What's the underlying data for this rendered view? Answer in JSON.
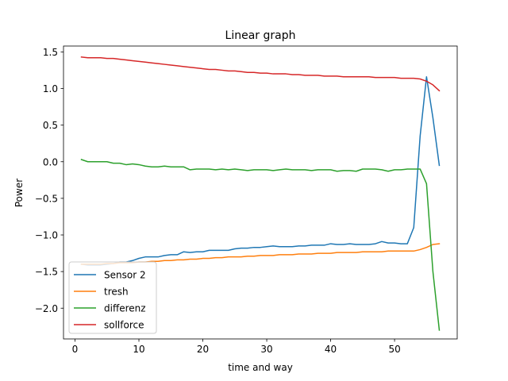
{
  "chart_data": {
    "type": "line",
    "title": "Linear graph",
    "xlabel": "time and way",
    "ylabel": "Power",
    "xlim": [
      -1.8,
      59.8
    ],
    "ylim": [
      -2.42,
      1.58
    ],
    "xticks": [
      0,
      10,
      20,
      30,
      40,
      50
    ],
    "yticks": [
      -2.0,
      -1.5,
      -1.0,
      -0.5,
      0.0,
      0.5,
      1.0,
      1.5
    ],
    "xtick_labels": [
      "0",
      "10",
      "20",
      "30",
      "40",
      "50"
    ],
    "ytick_labels": [
      "−2.0",
      "−1.5",
      "−1.0",
      "−0.5",
      "0.0",
      "0.5",
      "1.0",
      "1.5"
    ],
    "grid": false,
    "legend_position": "lower-left",
    "x": [
      1,
      2,
      3,
      4,
      5,
      6,
      7,
      8,
      9,
      10,
      11,
      12,
      13,
      14,
      15,
      16,
      17,
      18,
      19,
      20,
      21,
      22,
      23,
      24,
      25,
      26,
      27,
      28,
      29,
      30,
      31,
      32,
      33,
      34,
      35,
      36,
      37,
      38,
      39,
      40,
      41,
      42,
      43,
      44,
      45,
      46,
      47,
      48,
      49,
      50,
      51,
      52,
      53,
      54,
      55,
      56,
      57
    ],
    "series": [
      {
        "name": "Sensor 2",
        "color": "#1f77b4",
        "values": [
          -1.4,
          -1.41,
          -1.41,
          -1.41,
          -1.4,
          -1.39,
          -1.37,
          -1.37,
          -1.35,
          -1.32,
          -1.3,
          -1.3,
          -1.3,
          -1.28,
          -1.27,
          -1.27,
          -1.23,
          -1.24,
          -1.23,
          -1.23,
          -1.21,
          -1.21,
          -1.21,
          -1.21,
          -1.19,
          -1.18,
          -1.18,
          -1.17,
          -1.17,
          -1.16,
          -1.15,
          -1.16,
          -1.16,
          -1.16,
          -1.15,
          -1.15,
          -1.14,
          -1.14,
          -1.14,
          -1.12,
          -1.13,
          -1.13,
          -1.12,
          -1.13,
          -1.13,
          -1.13,
          -1.12,
          -1.09,
          -1.11,
          -1.11,
          -1.12,
          -1.12,
          -0.9,
          0.35,
          1.16,
          0.6,
          -0.05
        ]
      },
      {
        "name": "tresh",
        "color": "#ff7f0e",
        "values": [
          -1.4,
          -1.4,
          -1.4,
          -1.4,
          -1.39,
          -1.39,
          -1.38,
          -1.38,
          -1.38,
          -1.37,
          -1.37,
          -1.36,
          -1.36,
          -1.35,
          -1.35,
          -1.34,
          -1.34,
          -1.33,
          -1.33,
          -1.32,
          -1.32,
          -1.31,
          -1.31,
          -1.3,
          -1.3,
          -1.3,
          -1.29,
          -1.29,
          -1.28,
          -1.28,
          -1.28,
          -1.27,
          -1.27,
          -1.27,
          -1.26,
          -1.26,
          -1.26,
          -1.25,
          -1.25,
          -1.25,
          -1.24,
          -1.24,
          -1.24,
          -1.24,
          -1.23,
          -1.23,
          -1.23,
          -1.23,
          -1.22,
          -1.22,
          -1.22,
          -1.22,
          -1.22,
          -1.2,
          -1.17,
          -1.13,
          -1.12
        ]
      },
      {
        "name": "differenz",
        "color": "#2ca02c",
        "values": [
          0.03,
          0.0,
          0.0,
          0.0,
          0.0,
          -0.02,
          -0.02,
          -0.04,
          -0.03,
          -0.04,
          -0.06,
          -0.07,
          -0.07,
          -0.06,
          -0.07,
          -0.07,
          -0.07,
          -0.11,
          -0.1,
          -0.1,
          -0.1,
          -0.11,
          -0.1,
          -0.11,
          -0.1,
          -0.11,
          -0.12,
          -0.11,
          -0.11,
          -0.11,
          -0.12,
          -0.11,
          -0.1,
          -0.11,
          -0.11,
          -0.11,
          -0.12,
          -0.11,
          -0.11,
          -0.11,
          -0.13,
          -0.12,
          -0.12,
          -0.13,
          -0.1,
          -0.1,
          -0.1,
          -0.11,
          -0.13,
          -0.11,
          -0.11,
          -0.1,
          -0.1,
          -0.1,
          -0.3,
          -1.5,
          -2.3
        ]
      },
      {
        "name": "sollforce",
        "color": "#d62728",
        "values": [
          1.43,
          1.42,
          1.42,
          1.42,
          1.41,
          1.41,
          1.4,
          1.39,
          1.38,
          1.37,
          1.36,
          1.35,
          1.34,
          1.33,
          1.32,
          1.31,
          1.3,
          1.29,
          1.28,
          1.27,
          1.26,
          1.26,
          1.25,
          1.24,
          1.24,
          1.23,
          1.22,
          1.22,
          1.21,
          1.21,
          1.2,
          1.2,
          1.2,
          1.19,
          1.19,
          1.18,
          1.18,
          1.18,
          1.17,
          1.17,
          1.17,
          1.16,
          1.16,
          1.16,
          1.16,
          1.16,
          1.15,
          1.15,
          1.15,
          1.15,
          1.14,
          1.14,
          1.14,
          1.13,
          1.1,
          1.05,
          0.97
        ]
      }
    ]
  }
}
